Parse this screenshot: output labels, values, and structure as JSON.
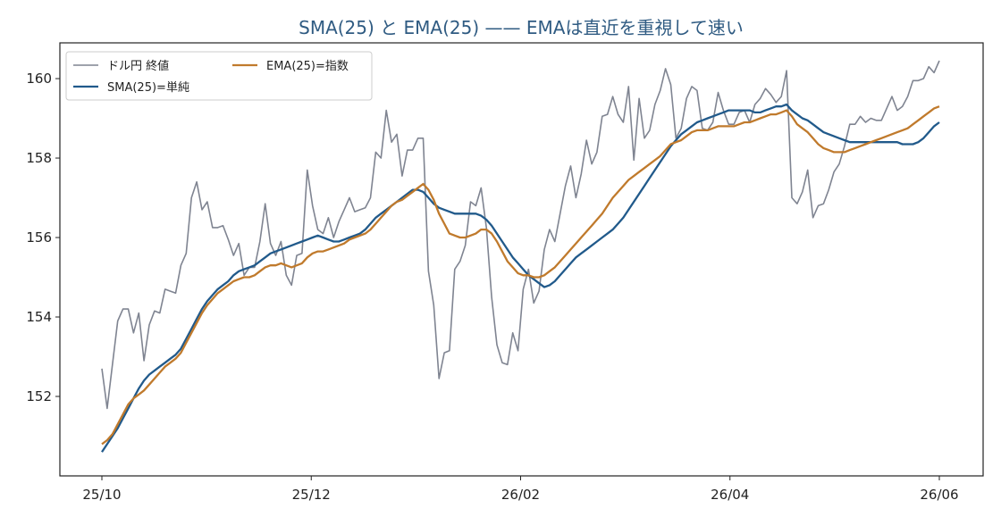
{
  "chart_data": {
    "type": "line",
    "title": "SMA(25) と EMA(25) —— EMAは直近を重視して速い",
    "xlabel": "",
    "ylabel": "",
    "x_ticks": [
      "25/10",
      "25/12",
      "26/02",
      "26/04",
      "26/06"
    ],
    "y_ticks": [
      152,
      154,
      156,
      158,
      160
    ],
    "ylim": [
      150.0,
      160.9
    ],
    "grid": false,
    "legend": {
      "placement": "top-left",
      "columns": 2
    },
    "series": [
      {
        "name": "ドル円 終値",
        "color": "#7f8491",
        "values": [
          152.7,
          151.7,
          152.8,
          153.9,
          154.2,
          154.2,
          153.6,
          154.1,
          152.9,
          153.8,
          154.15,
          154.1,
          154.7,
          154.65,
          154.6,
          155.3,
          155.6,
          157.0,
          157.4,
          156.7,
          156.9,
          156.25,
          156.25,
          156.3,
          155.95,
          155.55,
          155.85,
          155.05,
          155.25,
          155.25,
          155.9,
          156.85,
          155.85,
          155.55,
          155.9,
          155.05,
          154.8,
          155.55,
          155.6,
          157.7,
          156.8,
          156.2,
          156.1,
          156.5,
          156.0,
          156.4,
          156.7,
          157.0,
          156.65,
          156.7,
          156.75,
          157.0,
          158.15,
          158.0,
          159.2,
          158.4,
          158.6,
          157.55,
          158.2,
          158.2,
          158.5,
          158.5,
          155.15,
          154.3,
          152.45,
          153.1,
          153.15,
          155.2,
          155.4,
          155.8,
          156.9,
          156.8,
          157.25,
          156.25,
          154.5,
          153.3,
          152.85,
          152.8,
          153.6,
          153.15,
          154.7,
          155.2,
          154.35,
          154.65,
          155.7,
          156.2,
          155.9,
          156.6,
          157.3,
          157.8,
          157.0,
          157.6,
          158.45,
          157.85,
          158.15,
          159.05,
          159.1,
          159.55,
          159.1,
          158.9,
          159.8,
          157.95,
          159.5,
          158.5,
          158.7,
          159.35,
          159.7,
          160.25,
          159.85,
          158.5,
          158.75,
          159.5,
          159.8,
          159.7,
          158.75,
          158.7,
          158.9,
          159.65,
          159.2,
          158.85,
          158.85,
          159.15,
          159.2,
          158.9,
          159.35,
          159.5,
          159.75,
          159.6,
          159.4,
          159.55,
          160.2,
          157.0,
          156.85,
          157.15,
          157.7,
          156.5,
          156.8,
          156.85,
          157.2,
          157.65,
          157.85,
          158.3,
          158.85,
          158.85,
          159.05,
          158.9,
          159.0,
          158.95,
          158.95,
          159.25,
          159.55,
          159.2,
          159.3,
          159.55,
          159.95,
          159.95,
          160.0,
          160.3,
          160.15,
          160.45
        ]
      },
      {
        "name": "SMA(25)=単純",
        "color": "#215a8b",
        "values": [
          150.6,
          150.8,
          151.0,
          151.2,
          151.45,
          151.7,
          151.95,
          152.2,
          152.4,
          152.55,
          152.65,
          152.75,
          152.85,
          152.95,
          153.05,
          153.2,
          153.45,
          153.7,
          153.95,
          154.2,
          154.4,
          154.55,
          154.7,
          154.8,
          154.9,
          155.05,
          155.15,
          155.2,
          155.25,
          155.3,
          155.4,
          155.5,
          155.6,
          155.65,
          155.7,
          155.75,
          155.8,
          155.85,
          155.9,
          155.95,
          156.0,
          156.05,
          156.0,
          155.95,
          155.9,
          155.9,
          155.95,
          156.0,
          156.05,
          156.1,
          156.2,
          156.35,
          156.5,
          156.6,
          156.7,
          156.8,
          156.9,
          157.0,
          157.1,
          157.2,
          157.2,
          157.15,
          157.0,
          156.85,
          156.75,
          156.7,
          156.65,
          156.6,
          156.6,
          156.6,
          156.6,
          156.6,
          156.55,
          156.45,
          156.3,
          156.1,
          155.9,
          155.7,
          155.5,
          155.35,
          155.2,
          155.05,
          154.95,
          154.85,
          154.75,
          154.8,
          154.9,
          155.05,
          155.2,
          155.35,
          155.5,
          155.6,
          155.7,
          155.8,
          155.9,
          156.0,
          156.1,
          156.2,
          156.35,
          156.5,
          156.7,
          156.9,
          157.1,
          157.3,
          157.5,
          157.7,
          157.9,
          158.1,
          158.3,
          158.45,
          158.6,
          158.7,
          158.8,
          158.9,
          158.95,
          159.0,
          159.05,
          159.1,
          159.15,
          159.2,
          159.2,
          159.2,
          159.2,
          159.2,
          159.15,
          159.15,
          159.2,
          159.25,
          159.3,
          159.3,
          159.35,
          159.2,
          159.1,
          159.0,
          158.95,
          158.85,
          158.75,
          158.65,
          158.6,
          158.55,
          158.5,
          158.45,
          158.4,
          158.4,
          158.4,
          158.4,
          158.4,
          158.4,
          158.4,
          158.4,
          158.4,
          158.4,
          158.35,
          158.35,
          158.35,
          158.4,
          158.5,
          158.65,
          158.8,
          158.9
        ]
      },
      {
        "name": "EMA(25)=指数",
        "color": "#c07a2c",
        "values": [
          150.8,
          150.9,
          151.05,
          151.3,
          151.55,
          151.8,
          151.95,
          152.05,
          152.15,
          152.3,
          152.45,
          152.6,
          152.75,
          152.85,
          152.95,
          153.1,
          153.35,
          153.6,
          153.85,
          154.1,
          154.3,
          154.45,
          154.6,
          154.7,
          154.8,
          154.9,
          154.95,
          155.0,
          155.0,
          155.05,
          155.15,
          155.25,
          155.3,
          155.3,
          155.35,
          155.3,
          155.25,
          155.3,
          155.35,
          155.5,
          155.6,
          155.65,
          155.65,
          155.7,
          155.75,
          155.8,
          155.85,
          155.95,
          156.0,
          156.05,
          156.1,
          156.2,
          156.35,
          156.5,
          156.65,
          156.8,
          156.9,
          156.95,
          157.05,
          157.15,
          157.25,
          157.35,
          157.2,
          156.95,
          156.6,
          156.35,
          156.1,
          156.05,
          156.0,
          156.0,
          156.05,
          156.1,
          156.2,
          156.2,
          156.1,
          155.9,
          155.65,
          155.4,
          155.25,
          155.1,
          155.05,
          155.05,
          155.0,
          155.0,
          155.05,
          155.15,
          155.25,
          155.4,
          155.55,
          155.7,
          155.85,
          156.0,
          156.15,
          156.3,
          156.45,
          156.6,
          156.8,
          157.0,
          157.15,
          157.3,
          157.45,
          157.55,
          157.65,
          157.75,
          157.85,
          157.95,
          158.05,
          158.2,
          158.35,
          158.4,
          158.45,
          158.55,
          158.65,
          158.7,
          158.7,
          158.7,
          158.75,
          158.8,
          158.8,
          158.8,
          158.8,
          158.85,
          158.9,
          158.9,
          158.95,
          159.0,
          159.05,
          159.1,
          159.1,
          159.15,
          159.2,
          159.05,
          158.85,
          158.75,
          158.65,
          158.5,
          158.35,
          158.25,
          158.2,
          158.15,
          158.15,
          158.15,
          158.2,
          158.25,
          158.3,
          158.35,
          158.4,
          158.45,
          158.5,
          158.55,
          158.6,
          158.65,
          158.7,
          158.75,
          158.85,
          158.95,
          159.05,
          159.15,
          159.25,
          159.3
        ]
      }
    ]
  }
}
